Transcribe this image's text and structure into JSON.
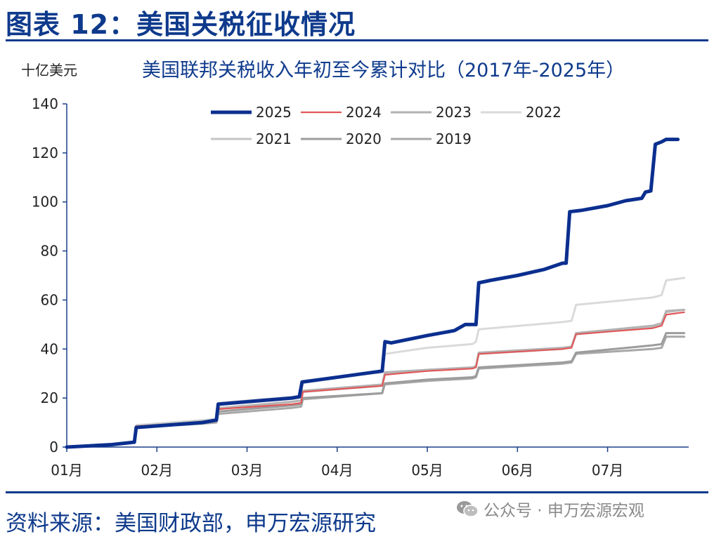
{
  "header": {
    "title": "图表 12：美国关税征收情况"
  },
  "footer": {
    "source": "资料来源：美国财政部，申万宏源研究",
    "watermark": "公众号 · 申万宏源宏观",
    "watermark_icon": "wechat-icon"
  },
  "colors": {
    "brand": "#0e3a8c",
    "axis": "#1b3f8b"
  },
  "chart_data": {
    "type": "line",
    "title": "美国联邦关税收入年初至今累计对比（2017年-2025年）",
    "unit": "十亿美元",
    "xlabel": "",
    "ylabel": "十亿美元",
    "ylim": [
      0,
      140
    ],
    "yticks": [
      0,
      20,
      40,
      60,
      80,
      100,
      120,
      140
    ],
    "xlim": [
      1,
      7.9
    ],
    "xticks": [
      {
        "value": 1,
        "label": "01月"
      },
      {
        "value": 2,
        "label": "02月"
      },
      {
        "value": 3,
        "label": "03月"
      },
      {
        "value": 4,
        "label": "04月"
      },
      {
        "value": 5,
        "label": "05月"
      },
      {
        "value": 6,
        "label": "06月"
      },
      {
        "value": 7,
        "label": "07月"
      }
    ],
    "grid": false,
    "legend": "top-center",
    "series": [
      {
        "name": "2019",
        "color": "#a8a8a8",
        "width": 3,
        "points": [
          [
            1,
            0
          ],
          [
            1.5,
            1
          ],
          [
            1.75,
            2
          ],
          [
            1.77,
            8
          ],
          [
            2.5,
            9.5
          ],
          [
            2.66,
            10
          ],
          [
            2.68,
            13.5
          ],
          [
            3.5,
            16
          ],
          [
            3.6,
            16.5
          ],
          [
            3.62,
            19.5
          ],
          [
            4.5,
            22
          ],
          [
            4.52,
            25.5
          ],
          [
            5,
            27
          ],
          [
            5.5,
            28
          ],
          [
            5.54,
            28.5
          ],
          [
            5.57,
            32
          ],
          [
            6.5,
            34
          ],
          [
            6.6,
            34.5
          ],
          [
            6.65,
            38
          ],
          [
            7.5,
            40
          ],
          [
            7.6,
            40.5
          ],
          [
            7.65,
            45
          ],
          [
            7.85,
            45
          ]
        ]
      },
      {
        "name": "2020",
        "color": "#9c9c9c",
        "width": 3,
        "points": [
          [
            1,
            0
          ],
          [
            1.5,
            1
          ],
          [
            1.75,
            2
          ],
          [
            1.77,
            8.5
          ],
          [
            2.5,
            10
          ],
          [
            2.66,
            10.5
          ],
          [
            2.68,
            14.5
          ],
          [
            3.5,
            17
          ],
          [
            3.6,
            17.5
          ],
          [
            3.62,
            20
          ],
          [
            4.5,
            22
          ],
          [
            4.53,
            26
          ],
          [
            5,
            27.5
          ],
          [
            5.5,
            28.5
          ],
          [
            5.54,
            29
          ],
          [
            5.57,
            32.5
          ],
          [
            6.5,
            34.5
          ],
          [
            6.6,
            35
          ],
          [
            6.65,
            38.5
          ],
          [
            7.5,
            41.5
          ],
          [
            7.6,
            42
          ],
          [
            7.65,
            46.5
          ],
          [
            7.85,
            46.5
          ]
        ]
      },
      {
        "name": "2021",
        "color": "#c4c4c4",
        "width": 3,
        "points": [
          [
            1,
            0
          ],
          [
            1.5,
            1
          ],
          [
            1.75,
            2
          ],
          [
            1.77,
            8.5
          ],
          [
            2.5,
            10
          ],
          [
            2.66,
            10.5
          ],
          [
            2.68,
            16
          ],
          [
            3.5,
            18.5
          ],
          [
            3.6,
            19
          ],
          [
            3.62,
            22.5
          ],
          [
            4.5,
            25
          ],
          [
            4.53,
            30
          ],
          [
            5,
            31.5
          ],
          [
            5.5,
            32.5
          ],
          [
            5.54,
            33
          ],
          [
            5.57,
            38
          ],
          [
            6.5,
            40
          ],
          [
            6.6,
            41
          ],
          [
            6.65,
            46
          ],
          [
            7.5,
            49
          ],
          [
            7.6,
            50
          ],
          [
            7.65,
            55
          ],
          [
            7.85,
            56
          ]
        ]
      },
      {
        "name": "2022",
        "color": "#dadada",
        "width": 3,
        "points": [
          [
            1,
            0
          ],
          [
            1.5,
            1
          ],
          [
            1.75,
            2
          ],
          [
            1.77,
            9
          ],
          [
            2.5,
            11
          ],
          [
            2.66,
            11.5
          ],
          [
            2.68,
            18
          ],
          [
            3.5,
            20.5
          ],
          [
            3.6,
            21
          ],
          [
            3.62,
            27
          ],
          [
            4.5,
            30.5
          ],
          [
            4.53,
            38
          ],
          [
            5,
            40.5
          ],
          [
            5.5,
            42
          ],
          [
            5.54,
            43
          ],
          [
            5.57,
            48
          ],
          [
            6.5,
            51
          ],
          [
            6.6,
            51.5
          ],
          [
            6.65,
            58
          ],
          [
            7.5,
            61
          ],
          [
            7.6,
            62
          ],
          [
            7.65,
            68
          ],
          [
            7.85,
            69
          ]
        ]
      },
      {
        "name": "2023",
        "color": "#b2b2b2",
        "width": 3,
        "points": [
          [
            1,
            0
          ],
          [
            1.5,
            1
          ],
          [
            1.75,
            2
          ],
          [
            1.77,
            8.5
          ],
          [
            2.5,
            10.5
          ],
          [
            2.66,
            11
          ],
          [
            2.68,
            15.5
          ],
          [
            3.5,
            18.5
          ],
          [
            3.6,
            19
          ],
          [
            3.62,
            23
          ],
          [
            4.5,
            25.5
          ],
          [
            4.53,
            30.5
          ],
          [
            5,
            31.5
          ],
          [
            5.5,
            32.5
          ],
          [
            5.54,
            33
          ],
          [
            5.57,
            38.5
          ],
          [
            6.5,
            40.5
          ],
          [
            6.6,
            41
          ],
          [
            6.65,
            46.5
          ],
          [
            7.5,
            49.5
          ],
          [
            7.6,
            50.5
          ],
          [
            7.65,
            55.5
          ],
          [
            7.85,
            56
          ]
        ]
      },
      {
        "name": "2024",
        "color": "#e15759",
        "width": 2.2,
        "points": [
          [
            1,
            0
          ],
          [
            1.5,
            1
          ],
          [
            1.75,
            2
          ],
          [
            1.77,
            8.5
          ],
          [
            2.5,
            10
          ],
          [
            2.66,
            10.5
          ],
          [
            2.68,
            15.5
          ],
          [
            3.5,
            17.5
          ],
          [
            3.6,
            18
          ],
          [
            3.62,
            22.5
          ],
          [
            4.5,
            25
          ],
          [
            4.53,
            29.5
          ],
          [
            5,
            31
          ],
          [
            5.5,
            32
          ],
          [
            5.54,
            32.5
          ],
          [
            5.57,
            38
          ],
          [
            6.5,
            40
          ],
          [
            6.6,
            40.5
          ],
          [
            6.65,
            46
          ],
          [
            7.5,
            48.5
          ],
          [
            7.6,
            49.5
          ],
          [
            7.65,
            54
          ],
          [
            7.85,
            55
          ]
        ]
      },
      {
        "name": "2025",
        "color": "#0b2f8f",
        "width": 5,
        "points": [
          [
            1,
            0
          ],
          [
            1.5,
            1
          ],
          [
            1.75,
            2
          ],
          [
            1.77,
            8
          ],
          [
            2.5,
            10
          ],
          [
            2.66,
            11
          ],
          [
            2.68,
            17.5
          ],
          [
            3.5,
            20
          ],
          [
            3.58,
            20.5
          ],
          [
            3.61,
            26.5
          ],
          [
            4.5,
            31
          ],
          [
            4.53,
            43
          ],
          [
            4.6,
            42.5
          ],
          [
            5,
            45.5
          ],
          [
            5.3,
            47.5
          ],
          [
            5.42,
            50
          ],
          [
            5.5,
            50
          ],
          [
            5.54,
            50
          ],
          [
            5.57,
            67
          ],
          [
            5.7,
            68
          ],
          [
            6,
            70
          ],
          [
            6.3,
            72.5
          ],
          [
            6.5,
            75
          ],
          [
            6.54,
            75
          ],
          [
            6.58,
            96
          ],
          [
            6.7,
            96.5
          ],
          [
            7,
            98.5
          ],
          [
            7.2,
            100.5
          ],
          [
            7.38,
            101.5
          ],
          [
            7.42,
            104
          ],
          [
            7.48,
            104.5
          ],
          [
            7.53,
            123.5
          ],
          [
            7.6,
            124.5
          ],
          [
            7.65,
            125.5
          ],
          [
            7.78,
            125.5
          ]
        ]
      }
    ]
  }
}
